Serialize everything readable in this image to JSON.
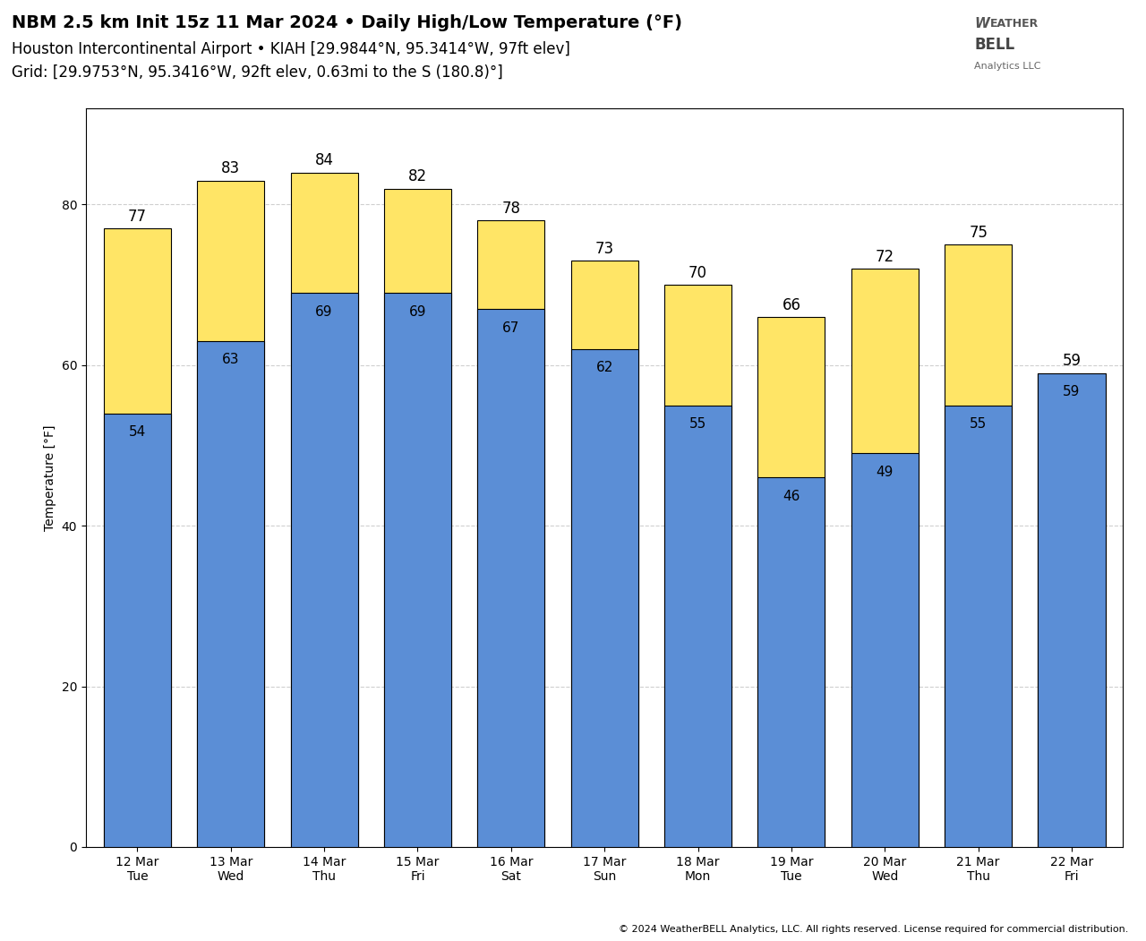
{
  "chart_data": {
    "type": "bar",
    "title": "NBM 2.5 km Init 15z 11 Mar 2024 • Daily High/Low Temperature (°F)",
    "subtitle": [
      "Houston Intercontinental Airport • KIAH [29.9844°N, 95.3414°W, 97ft elev]",
      "Grid: [29.9753°N, 95.3416°W, 92ft elev, 0.63mi to the S (180.8)°]"
    ],
    "categories": [
      "12 Mar\nTue",
      "13 Mar\nWed",
      "14 Mar\nThu",
      "15 Mar\nFri",
      "16 Mar\nSat",
      "17 Mar\nSun",
      "18 Mar\nMon",
      "19 Mar\nTue",
      "20 Mar\nWed",
      "21 Mar\nThu",
      "22 Mar\nFri"
    ],
    "series": [
      {
        "color": "#FFE566",
        "values": [
          77,
          83,
          84,
          82,
          78,
          73,
          70,
          66,
          72,
          75,
          59
        ]
      },
      {
        "color": "#5B8ED6",
        "values": [
          54,
          63,
          69,
          69,
          67,
          62,
          55,
          46,
          49,
          55,
          59
        ]
      }
    ],
    "ylabel": "Temperature [°F]",
    "ylim": [
      0,
      92
    ],
    "yticks": [
      0,
      20,
      40,
      60,
      80
    ],
    "grid": true,
    "data_labels": true,
    "annotations": [
      "© 2024 WeatherBELL Analytics, LLC. All rights reserved. License required for commercial distribution.",
      "W",
      "EATHER",
      "BELL",
      "Analytics LLC"
    ]
  }
}
